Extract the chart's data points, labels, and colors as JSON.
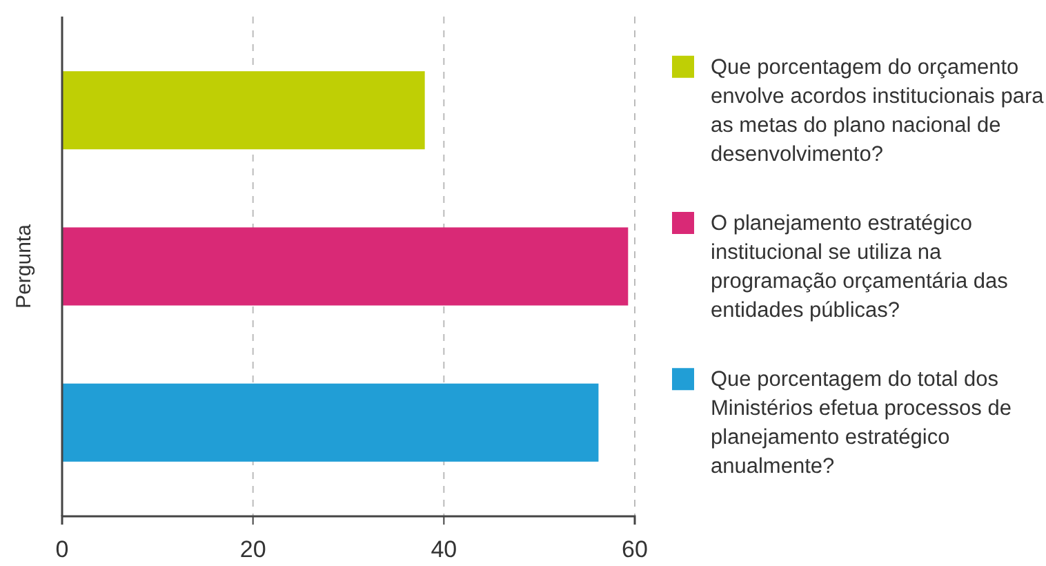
{
  "chart_data": {
    "type": "bar",
    "orientation": "horizontal",
    "stacked": true,
    "ylabel": "Pergunta",
    "categories": [
      null,
      null,
      null
    ],
    "series": [
      {
        "name": "Que porcentagem do orçamento envolve acordos institucionais para as metas do plano nacional de desenvolvimento?",
        "color": "#bfcf05",
        "values": [
          38.0,
          null,
          null
        ]
      },
      {
        "name": "O planejamento estratégico institucional se utiliza na programação orçamentária das entidades públicas?",
        "color": "#d92976",
        "values": [
          null,
          59.3,
          null
        ]
      },
      {
        "name": "Que porcentagem do total dos Ministérios efetua processos de planejamento estratégico anualmente?",
        "color": "#219ed6",
        "values": [
          null,
          null,
          56.2
        ]
      }
    ],
    "xlim": [
      0,
      60
    ],
    "xticks": [
      0,
      20,
      40,
      60
    ],
    "grid": "x",
    "legend": "right"
  }
}
